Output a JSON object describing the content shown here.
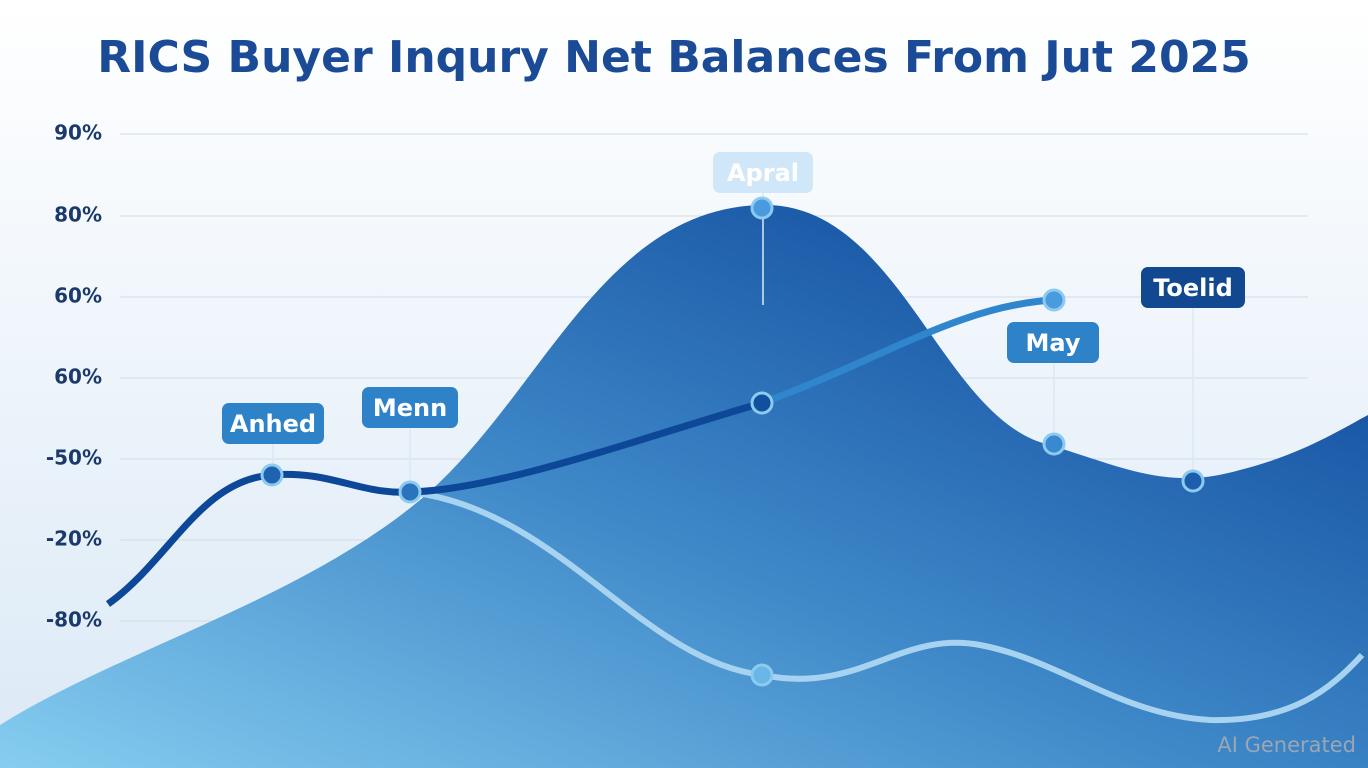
{
  "title": "RICS Buyer Inqury Net Balances From Jut 2025",
  "y_axis_labels": [
    "90%",
    "80%",
    "60%",
    "60%",
    "-50%",
    "-20%",
    "-80%"
  ],
  "callouts": [
    {
      "label": "Anhed"
    },
    {
      "label": "Menn"
    },
    {
      "label": "Apral"
    },
    {
      "label": "May"
    },
    {
      "label": "Toelid"
    }
  ],
  "watermark": "AI Generated"
}
